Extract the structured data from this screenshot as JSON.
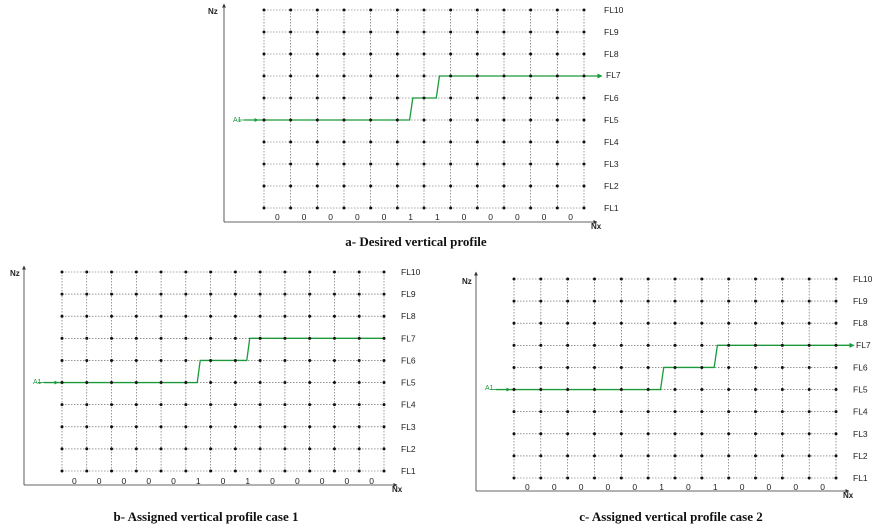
{
  "colors": {
    "profile": "#1a9a3a",
    "grid": "#555555",
    "node": "#111111",
    "axis": "#333333"
  },
  "panels": [
    {
      "id": "a",
      "caption": "a- Desired vertical profile",
      "x_axis_label": "Nx",
      "y_axis_label": "Nz",
      "start_label": "A1",
      "levels": [
        "FL1",
        "FL2",
        "FL3",
        "FL4",
        "FL5",
        "FL6",
        "FL7",
        "FL8",
        "FL9",
        "FL10"
      ],
      "bits": [
        "0",
        "0",
        "0",
        "0",
        "0",
        "1",
        "1",
        "0",
        "0",
        "0",
        "0",
        "0"
      ],
      "profile_levels": [
        "FL5",
        "FL5",
        "FL5",
        "FL5",
        "FL5",
        "FL5",
        "FL6",
        "FL7",
        "FL7",
        "FL7",
        "FL7",
        "FL7",
        "FL7"
      ],
      "end_level_label": "FL7"
    },
    {
      "id": "b",
      "caption": "b- Assigned vertical profile case 1",
      "x_axis_label": "Nx",
      "y_axis_label": "Nz",
      "start_label": "A1",
      "levels": [
        "FL1",
        "FL2",
        "FL3",
        "FL4",
        "FL5",
        "FL6",
        "FL7",
        "FL8",
        "FL9",
        "FL10"
      ],
      "bits": [
        "0",
        "0",
        "0",
        "0",
        "0",
        "1",
        "0",
        "1",
        "0",
        "0",
        "0",
        "0",
        "0"
      ],
      "profile_levels": [
        "FL5",
        "FL5",
        "FL5",
        "FL5",
        "FL5",
        "FL5",
        "FL6",
        "FL6",
        "FL7",
        "FL7",
        "FL7",
        "FL7",
        "FL7",
        "FL7"
      ],
      "end_level_label": "FL7"
    },
    {
      "id": "c",
      "caption": "c- Assigned vertical profile case 2",
      "x_axis_label": "Nx",
      "y_axis_label": "Nz",
      "start_label": "A1",
      "levels": [
        "FL1",
        "FL2",
        "FL3",
        "FL4",
        "FL5",
        "FL6",
        "FL7",
        "FL8",
        "FL9",
        "FL10"
      ],
      "bits": [
        "0",
        "0",
        "0",
        "0",
        "0",
        "1",
        "0",
        "1",
        "0",
        "0",
        "0",
        "0"
      ],
      "profile_levels": [
        "FL5",
        "FL5",
        "FL5",
        "FL5",
        "FL5",
        "FL5",
        "FL6",
        "FL6",
        "FL7",
        "FL7",
        "FL7",
        "FL7",
        "FL7"
      ],
      "end_level_label": "FL7"
    }
  ]
}
